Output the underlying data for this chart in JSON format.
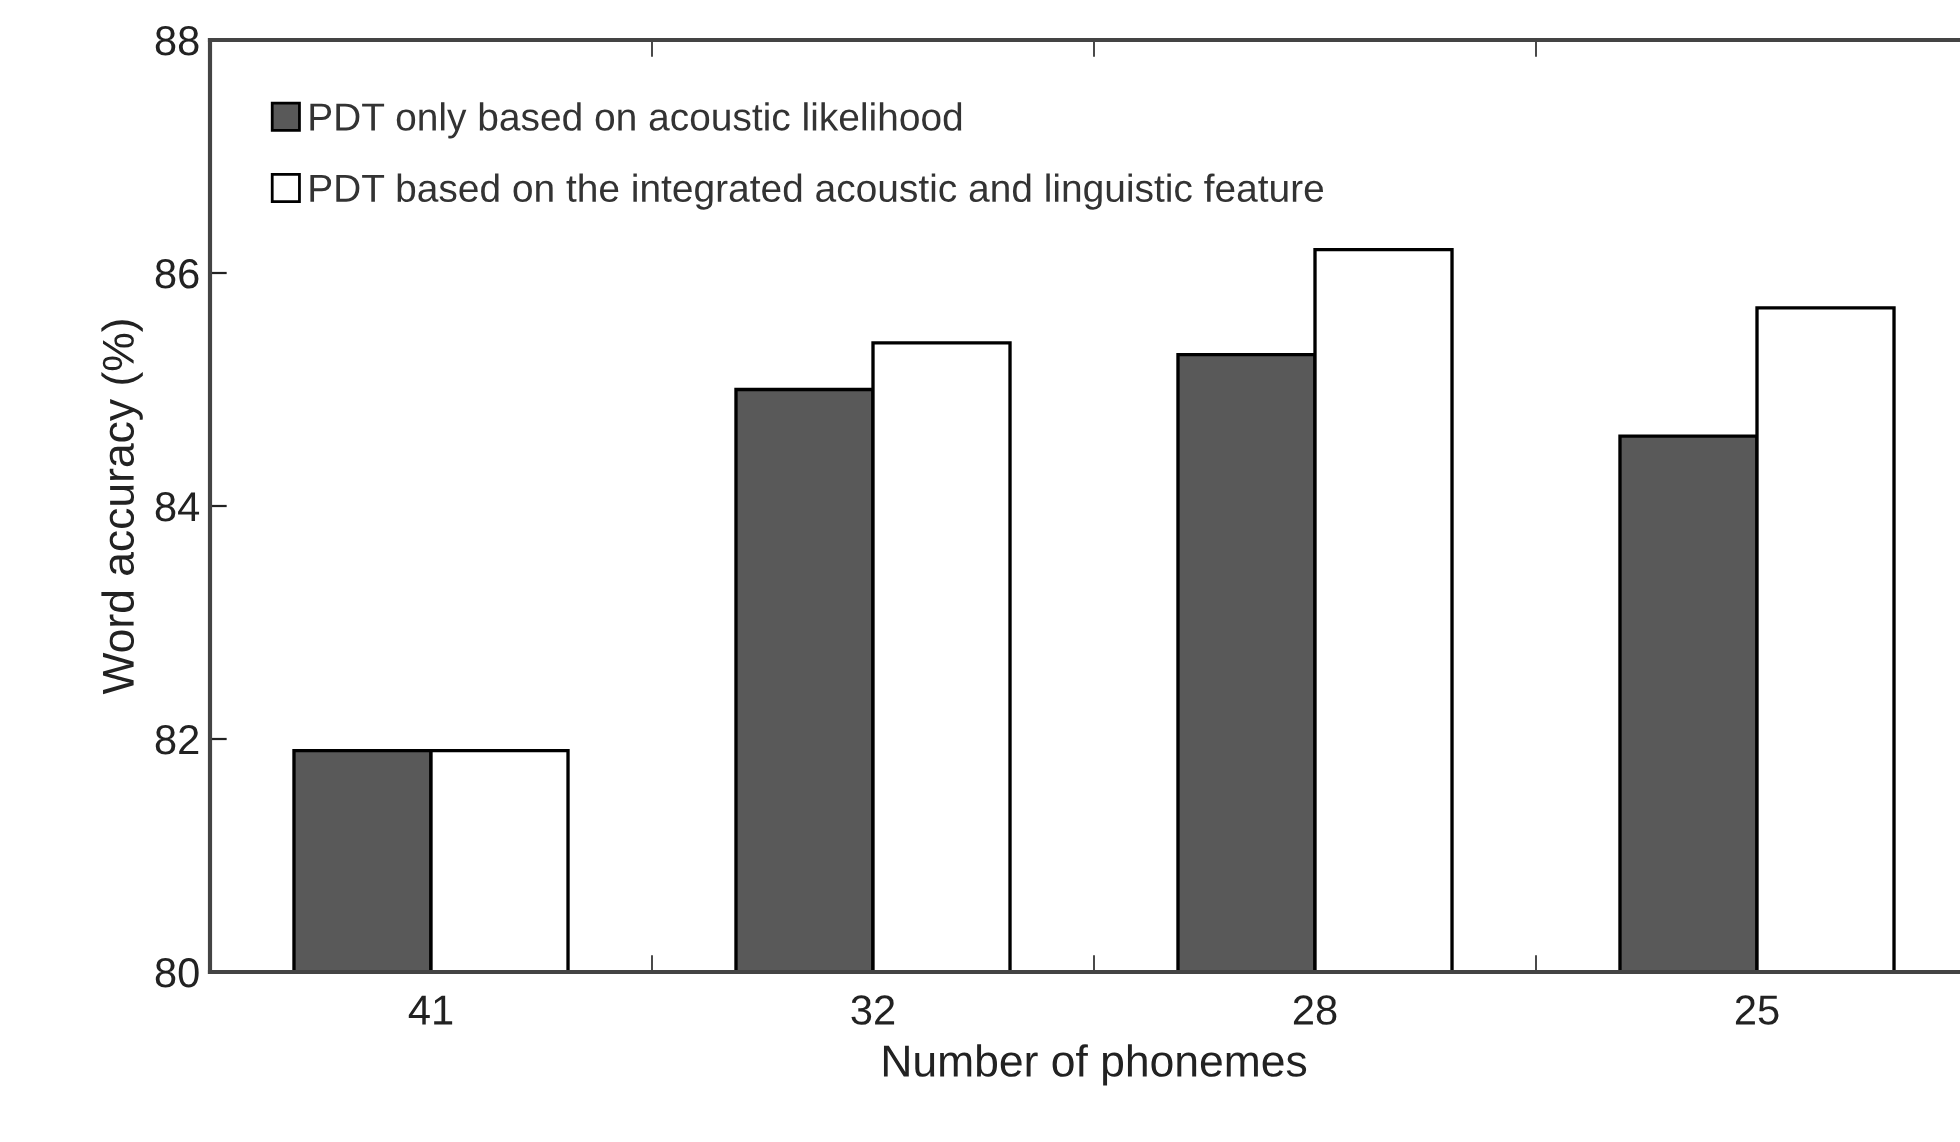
{
  "chart_data": {
    "type": "bar",
    "xlabel": "Number of phonemes",
    "ylabel": "Word accuracy (%)",
    "categories": [
      "41",
      "32",
      "28",
      "25"
    ],
    "series": [
      {
        "name": "PDT only based on acoustic likelihood",
        "color": "#595959",
        "values": [
          81.9,
          85.0,
          85.3,
          84.6
        ]
      },
      {
        "name": "PDT based on the integrated acoustic and linguistic feature",
        "color": "#ffffff",
        "values": [
          81.9,
          85.4,
          86.2,
          85.7
        ]
      }
    ],
    "ylim": [
      80,
      88
    ],
    "yticks": [
      80,
      82,
      84,
      86,
      88
    ],
    "grid": false,
    "legend": "top left"
  }
}
